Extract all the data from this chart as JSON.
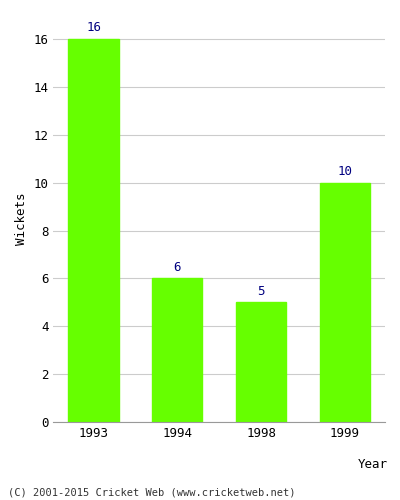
{
  "categories": [
    "1993",
    "1994",
    "1998",
    "1999"
  ],
  "values": [
    16,
    6,
    5,
    10
  ],
  "bar_color": "#66ff00",
  "bar_edge_color": "#66ff00",
  "label_color": "#000080",
  "xlabel": "Year",
  "ylabel": "Wickets",
  "ylim": [
    0,
    17
  ],
  "yticks": [
    0,
    2,
    4,
    6,
    8,
    10,
    12,
    14,
    16
  ],
  "grid_color": "#cccccc",
  "bg_color": "#ffffff",
  "plot_bg_color": "#ffffff",
  "footer": "(C) 2001-2015 Cricket Web (www.cricketweb.net)",
  "label_fontsize": 9,
  "axis_label_fontsize": 9,
  "tick_fontsize": 9
}
